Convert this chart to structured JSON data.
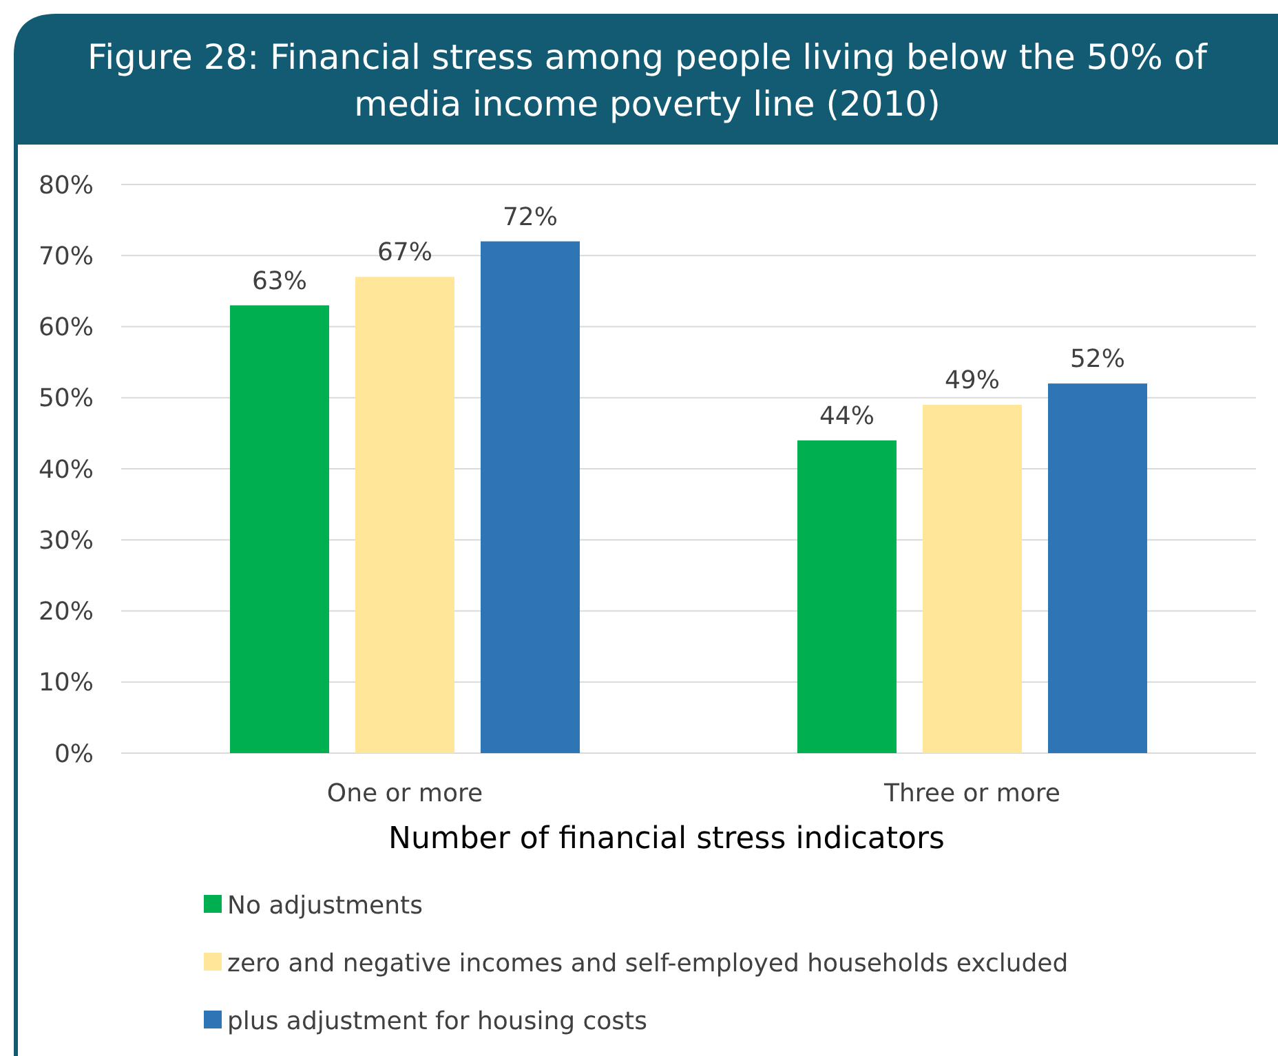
{
  "chart_data": {
    "type": "bar",
    "title": "Figure 28: Financial stress among people living below the 50% of\nmedia income poverty line (2010)",
    "xlabel": "Number of financial stress indicators",
    "categories": [
      "One or more",
      "Three or more"
    ],
    "series": [
      {
        "name": "No adjustments",
        "color": "#00b050",
        "values": [
          63,
          44
        ],
        "value_labels": [
          "63%",
          "44%"
        ]
      },
      {
        "name": "zero and negative incomes and self-employed households excluded",
        "color": "#ffe699",
        "values": [
          67,
          49
        ],
        "value_labels": [
          "67%",
          "49%"
        ]
      },
      {
        "name": "plus adjustment for housing costs",
        "color": "#2e75b6",
        "values": [
          72,
          52
        ],
        "value_labels": [
          "72%",
          "52%"
        ]
      }
    ],
    "ylim": [
      0,
      80
    ],
    "yticks": [
      {
        "value": 0,
        "label": "0%"
      },
      {
        "value": 10,
        "label": "10%"
      },
      {
        "value": 20,
        "label": "20%"
      },
      {
        "value": 30,
        "label": "30%"
      },
      {
        "value": 40,
        "label": "40%"
      },
      {
        "value": 50,
        "label": "50%"
      },
      {
        "value": 60,
        "label": "60%"
      },
      {
        "value": 70,
        "label": "70%"
      },
      {
        "value": 80,
        "label": "80%"
      }
    ],
    "grid": "y",
    "legend": "bottom"
  }
}
